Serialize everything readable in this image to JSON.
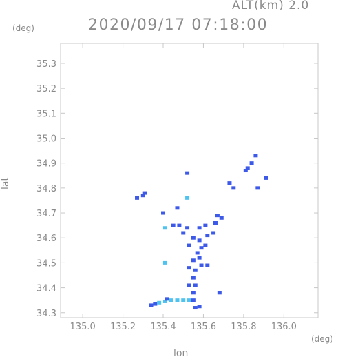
{
  "header": {
    "altitude_label": "ALT(km) 2.0",
    "datetime": "2020/09/17 07:18:00"
  },
  "axes": {
    "x_label": "lon",
    "y_label": "lat",
    "x_unit": "(deg)",
    "y_unit": "(deg)",
    "x_ticks": [
      "135.0",
      "135.2",
      "135.4",
      "135.6",
      "135.8",
      "136.0"
    ],
    "y_ticks": [
      "34.3",
      "34.4",
      "34.5",
      "34.6",
      "34.7",
      "34.8",
      "34.9",
      "35.0",
      "35.1",
      "35.2",
      "35.3"
    ]
  },
  "chart_data": {
    "type": "scatter",
    "xlabel": "lon",
    "ylabel": "lat",
    "xlim": [
      134.89,
      136.17
    ],
    "ylim": [
      34.28,
      35.38
    ],
    "grid": true,
    "colors": {
      "frame": "#c8c8c8",
      "echo_main": "#3d59e8",
      "echo_light": "#4fc3f0",
      "echo_dark": "#2a3fc0"
    },
    "points": [
      {
        "x": 135.56,
        "y": 34.32,
        "c": "echo_main"
      },
      {
        "x": 135.58,
        "y": 34.325,
        "c": "echo_main"
      },
      {
        "x": 135.34,
        "y": 34.33,
        "c": "echo_main"
      },
      {
        "x": 135.36,
        "y": 34.335,
        "c": "echo_main"
      },
      {
        "x": 135.38,
        "y": 34.34,
        "c": "echo_light"
      },
      {
        "x": 135.41,
        "y": 34.345,
        "c": "echo_light"
      },
      {
        "x": 135.44,
        "y": 34.35,
        "c": "echo_light"
      },
      {
        "x": 135.47,
        "y": 34.35,
        "c": "echo_light"
      },
      {
        "x": 135.5,
        "y": 34.35,
        "c": "echo_light"
      },
      {
        "x": 135.53,
        "y": 34.35,
        "c": "echo_light"
      },
      {
        "x": 135.55,
        "y": 34.35,
        "c": "echo_main"
      },
      {
        "x": 135.42,
        "y": 34.355,
        "c": "echo_main"
      },
      {
        "x": 135.68,
        "y": 34.38,
        "c": "echo_main"
      },
      {
        "x": 135.55,
        "y": 34.38,
        "c": "echo_main"
      },
      {
        "x": 135.53,
        "y": 34.41,
        "c": "echo_main"
      },
      {
        "x": 135.56,
        "y": 34.41,
        "c": "echo_main"
      },
      {
        "x": 135.55,
        "y": 34.44,
        "c": "echo_main"
      },
      {
        "x": 135.56,
        "y": 34.47,
        "c": "echo_main"
      },
      {
        "x": 135.53,
        "y": 34.48,
        "c": "echo_main"
      },
      {
        "x": 135.59,
        "y": 34.49,
        "c": "echo_main"
      },
      {
        "x": 135.62,
        "y": 34.49,
        "c": "echo_main"
      },
      {
        "x": 135.41,
        "y": 34.5,
        "c": "echo_light"
      },
      {
        "x": 135.55,
        "y": 34.51,
        "c": "echo_main"
      },
      {
        "x": 135.58,
        "y": 34.52,
        "c": "echo_main"
      },
      {
        "x": 135.57,
        "y": 34.54,
        "c": "echo_main"
      },
      {
        "x": 135.59,
        "y": 34.56,
        "c": "echo_main"
      },
      {
        "x": 135.61,
        "y": 34.57,
        "c": "echo_main"
      },
      {
        "x": 135.53,
        "y": 34.57,
        "c": "echo_main"
      },
      {
        "x": 135.55,
        "y": 34.6,
        "c": "echo_main"
      },
      {
        "x": 135.58,
        "y": 34.59,
        "c": "echo_main"
      },
      {
        "x": 135.62,
        "y": 34.61,
        "c": "echo_main"
      },
      {
        "x": 135.65,
        "y": 34.62,
        "c": "echo_main"
      },
      {
        "x": 135.5,
        "y": 34.62,
        "c": "echo_main"
      },
      {
        "x": 135.52,
        "y": 34.64,
        "c": "echo_main"
      },
      {
        "x": 135.45,
        "y": 34.65,
        "c": "echo_main"
      },
      {
        "x": 135.48,
        "y": 34.65,
        "c": "echo_main"
      },
      {
        "x": 135.58,
        "y": 34.64,
        "c": "echo_main"
      },
      {
        "x": 135.61,
        "y": 34.65,
        "c": "echo_main"
      },
      {
        "x": 135.66,
        "y": 34.66,
        "c": "echo_main"
      },
      {
        "x": 135.69,
        "y": 34.68,
        "c": "echo_main"
      },
      {
        "x": 135.67,
        "y": 34.69,
        "c": "echo_main"
      },
      {
        "x": 135.41,
        "y": 34.64,
        "c": "echo_light"
      },
      {
        "x": 135.4,
        "y": 34.7,
        "c": "echo_main"
      },
      {
        "x": 135.47,
        "y": 34.72,
        "c": "echo_main"
      },
      {
        "x": 135.27,
        "y": 34.76,
        "c": "echo_main"
      },
      {
        "x": 135.3,
        "y": 34.77,
        "c": "echo_main"
      },
      {
        "x": 135.31,
        "y": 34.78,
        "c": "echo_main"
      },
      {
        "x": 135.52,
        "y": 34.76,
        "c": "echo_light"
      },
      {
        "x": 135.75,
        "y": 34.8,
        "c": "echo_main"
      },
      {
        "x": 135.73,
        "y": 34.82,
        "c": "echo_main"
      },
      {
        "x": 135.87,
        "y": 34.8,
        "c": "echo_main"
      },
      {
        "x": 135.91,
        "y": 34.84,
        "c": "echo_main"
      },
      {
        "x": 135.82,
        "y": 34.88,
        "c": "echo_main"
      },
      {
        "x": 135.84,
        "y": 34.9,
        "c": "echo_main"
      },
      {
        "x": 135.86,
        "y": 34.93,
        "c": "echo_main"
      },
      {
        "x": 135.81,
        "y": 34.87,
        "c": "echo_main"
      },
      {
        "x": 135.52,
        "y": 34.86,
        "c": "echo_main"
      }
    ]
  }
}
